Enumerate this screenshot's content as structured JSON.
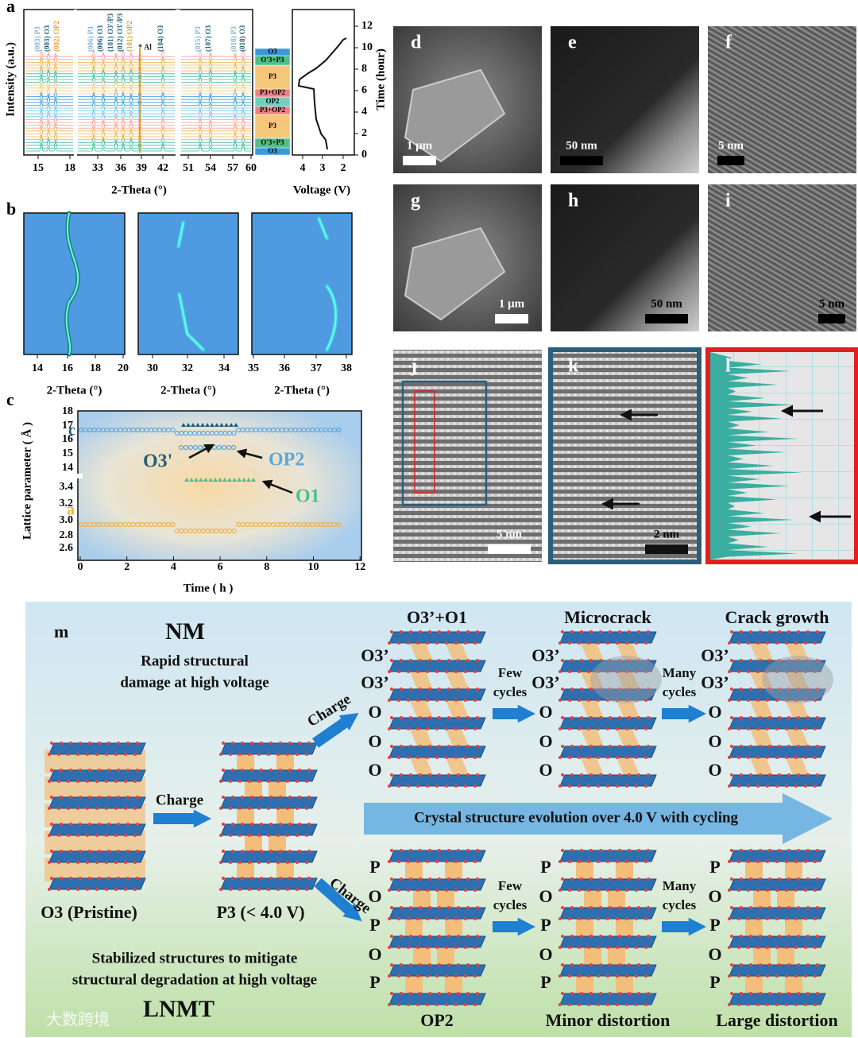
{
  "panels": {
    "a": {
      "label": "a",
      "y_axis_label": "Intensity (a.u.)",
      "x_axis_label": "2-Theta (°)",
      "x_ticks": [
        "15",
        "18",
        "33",
        "36",
        "39",
        "42",
        "51",
        "54",
        "57",
        "60"
      ],
      "peaks": [
        {
          "text": "(003) P3",
          "color": "#7fb3d5"
        },
        {
          "text": "(003) O3",
          "color": "#1f5f7a"
        },
        {
          "text": "(002) OP2",
          "color": "#e0a030"
        },
        {
          "text": "(006) P3",
          "color": "#7fb3d5"
        },
        {
          "text": "(006) O3",
          "color": "#1f5f7a"
        },
        {
          "text": "(101) O3'/P3",
          "color": "#1f5f7a"
        },
        {
          "text": "(012) O3'/P3",
          "color": "#1f5f7a"
        },
        {
          "text": "(101) OP2",
          "color": "#e0a030"
        },
        {
          "text": "* Al",
          "color": "#222222"
        },
        {
          "text": "(104) O3",
          "color": "#1f5f7a"
        },
        {
          "text": "(015) P3",
          "color": "#7fb3d5"
        },
        {
          "text": "(107) O3",
          "color": "#1f5f7a"
        },
        {
          "text": "(018) P3",
          "color": "#7fb3d5"
        },
        {
          "text": "(018) O3",
          "color": "#1f5f7a"
        }
      ],
      "phases": [
        {
          "text": "O3",
          "color": "#3a9ad9"
        },
        {
          "text": "O'3+P3",
          "color": "#4dc08a"
        },
        {
          "text": "P3",
          "color": "#f5c77a"
        },
        {
          "text": "P3+OP2",
          "color": "#f08080"
        },
        {
          "text": "OP2",
          "color": "#6fd0c0"
        },
        {
          "text": "P3+OP2",
          "color": "#f08080"
        },
        {
          "text": "P3",
          "color": "#f5c77a"
        },
        {
          "text": "O'3+P3",
          "color": "#4dc08a"
        },
        {
          "text": "O3",
          "color": "#3a9ad9"
        }
      ],
      "voltage_axis_label": "Voltage (V)",
      "voltage_ticks": [
        "4",
        "3",
        "2"
      ],
      "time_axis_label": "Time (hour)",
      "time_ticks": [
        "0",
        "2",
        "4",
        "6",
        "8",
        "10",
        "12"
      ]
    },
    "b": {
      "label": "b",
      "plots": [
        {
          "x_axis_label": "2-Theta (°)",
          "x_ticks": [
            "14",
            "16",
            "18",
            "20"
          ]
        },
        {
          "x_axis_label": "2-Theta (°)",
          "x_ticks": [
            "30",
            "32",
            "34"
          ]
        },
        {
          "x_axis_label": "2-Theta (°)",
          "x_ticks": [
            "35",
            "36",
            "37",
            "38"
          ]
        }
      ]
    },
    "c": {
      "label": "c",
      "y_axis_label": "Lattice parameter ( Å )",
      "x_axis_label": "Time ( h )",
      "y_ticks_upper": [
        "18",
        "17",
        "16",
        "15",
        "14"
      ],
      "y_ticks_lower": [
        "3.4",
        "3.2",
        "3.0",
        "2.8",
        "2.6"
      ],
      "x_ticks": [
        "0",
        "2",
        "4",
        "6",
        "8",
        "10",
        "12"
      ],
      "annotations": [
        "c",
        "O3'",
        "OP2",
        "O1",
        "a"
      ]
    },
    "micrographs": [
      {
        "label": "d",
        "scale": "1 μm"
      },
      {
        "label": "e",
        "scale": "50 nm"
      },
      {
        "label": "f",
        "scale": "5 nm"
      },
      {
        "label": "g",
        "scale": "1 μm"
      },
      {
        "label": "h",
        "scale": "50 nm"
      },
      {
        "label": "i",
        "scale": "5 nm"
      },
      {
        "label": "j",
        "scale": "5 nm"
      },
      {
        "label": "k",
        "scale": "2 nm"
      },
      {
        "label": "l"
      }
    ],
    "m": {
      "label": "m",
      "nm_title": "NM",
      "nm_caption": [
        "Rapid structural",
        "damage at high voltage"
      ],
      "lnmt_title": "LNMT",
      "lnmt_caption": [
        "Stabilized structures to mitigate",
        "structural degradation at high voltage"
      ],
      "pristine": "O3 (Pristine)",
      "p3": "P3 (< 4.0 V)",
      "charge": "Charge",
      "evolution": "Crystal structure evolution over 4.0 V with cycling",
      "few_cycles": [
        "Few",
        "cycles"
      ],
      "many_cycles": [
        "Many",
        "cycles"
      ],
      "top_columns": [
        {
          "title": "O3’+O1",
          "layers": [
            "O3’",
            "O3’",
            "O",
            "O",
            "O"
          ]
        },
        {
          "title": "Microcrack",
          "layers": [
            "O3’",
            "O3’",
            "O",
            "O",
            "O"
          ]
        },
        {
          "title": "Crack growth",
          "layers": [
            "O3’",
            "O3’",
            "O",
            "O",
            "O"
          ]
        }
      ],
      "bottom_columns": [
        {
          "caption": "OP2",
          "layers": [
            "P",
            "O",
            "P",
            "O",
            "P"
          ]
        },
        {
          "caption": "Minor distortion",
          "layers": [
            "P",
            "O",
            "P",
            "O",
            "P"
          ]
        },
        {
          "caption": "Large distortion",
          "layers": [
            "P",
            "O",
            "P",
            "O",
            "P"
          ]
        }
      ]
    }
  },
  "watermark": "大数跨境"
}
